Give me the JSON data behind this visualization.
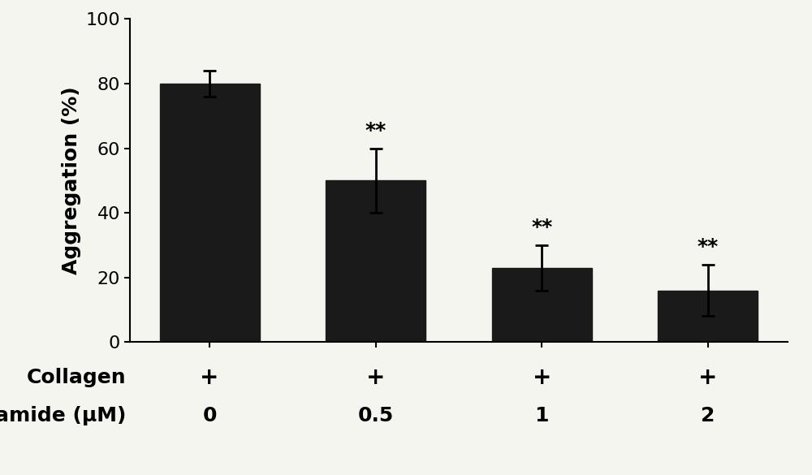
{
  "categories": [
    "0",
    "0.5",
    "1",
    "2"
  ],
  "values": [
    80,
    50,
    23,
    16
  ],
  "errors": [
    4,
    10,
    7,
    8
  ],
  "bar_color": "#1a1a1a",
  "background_color": "#f5f5f0",
  "ylabel": "Aggregation (%)",
  "ylim": [
    0,
    100
  ],
  "yticks": [
    0,
    20,
    40,
    60,
    80,
    100
  ],
  "collagen_labels": [
    "+",
    "+",
    "+",
    "+"
  ],
  "niclosamide_values": [
    "0",
    "0.5",
    "1",
    "2"
  ],
  "significance": [
    false,
    true,
    true,
    true
  ],
  "sig_label": "**",
  "bar_width": 0.6,
  "label_fontsize": 18,
  "tick_fontsize": 16,
  "annotation_fontsize": 18,
  "xlabel_row1": "Collagen",
  "xlabel_row2": "Niclosamide (μM)"
}
